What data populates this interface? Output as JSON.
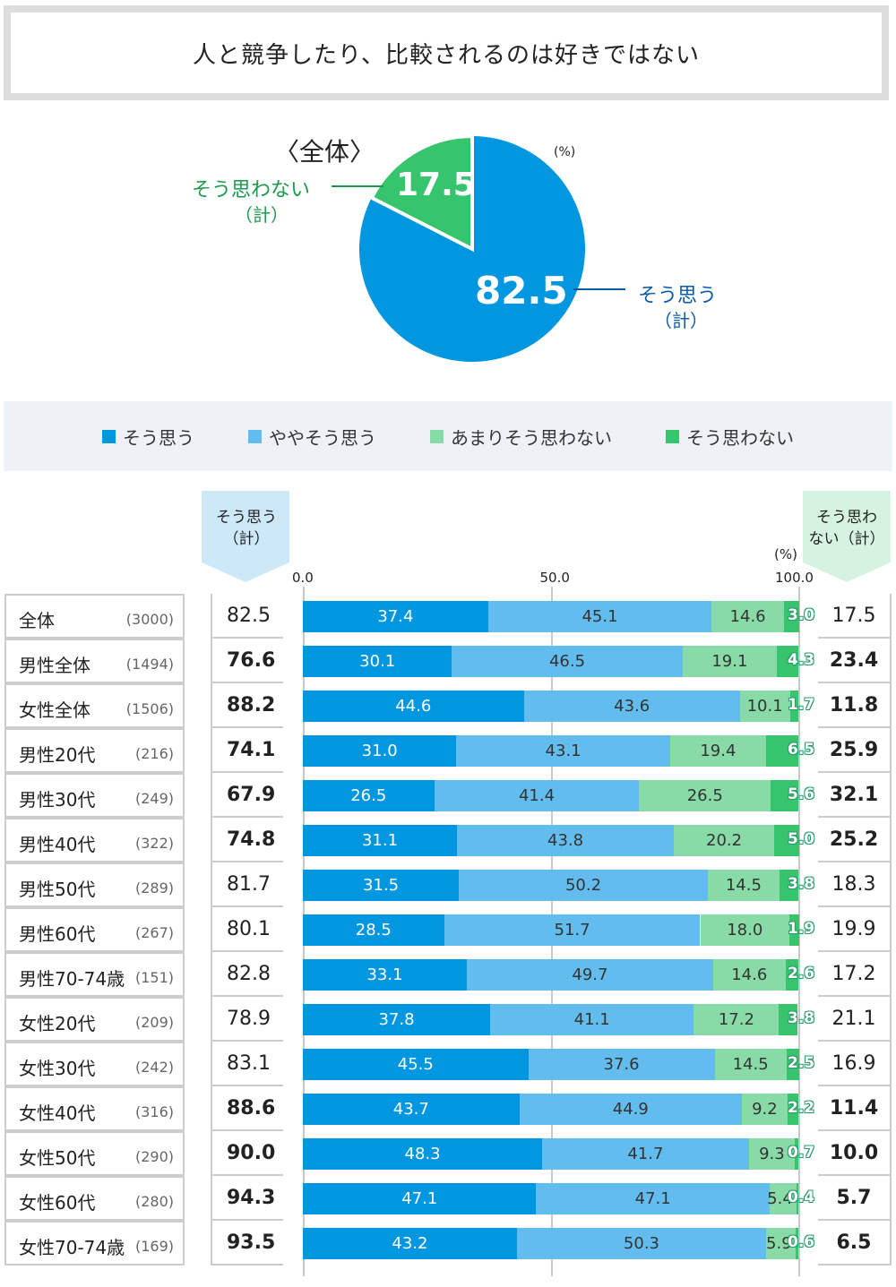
{
  "title": "人と競争したり、比較されるのは好きではない",
  "pie": {
    "heading": "〈全体〉",
    "unit": "(%)",
    "yes_label": "そう思う",
    "yes_sub": "（計）",
    "yes_value": 82.5,
    "no_label": "そう思わない",
    "no_sub": "（計）",
    "no_value": 17.5,
    "yes_color": "#0097e0",
    "no_color": "#36c46c"
  },
  "legend": [
    {
      "label": "そう思う",
      "color": "#0097e0"
    },
    {
      "label": "ややそう思う",
      "color": "#62bdee"
    },
    {
      "label": "あまりそう思わない",
      "color": "#88dba6"
    },
    {
      "label": "そう思わない",
      "color": "#36c46c"
    }
  ],
  "headers": {
    "left": "そう思う\n（計）",
    "right": "そう思わ\nない（計）",
    "unit": "(%)"
  },
  "chart_data": {
    "type": "bar",
    "stacked": true,
    "orientation": "horizontal",
    "xlim": [
      0,
      100
    ],
    "xticks": [
      "0.0",
      "50.0",
      "100.0"
    ],
    "series_names": [
      "そう思う",
      "ややそう思う",
      "あまりそう思わない",
      "そう思わない"
    ],
    "rows": [
      {
        "label": "全体",
        "n": "(3000)",
        "values": [
          37.4,
          45.1,
          14.6,
          3.0
        ],
        "yes": "82.5",
        "no": "17.5",
        "bold": false
      },
      {
        "label": "男性全体",
        "n": "(1494)",
        "values": [
          30.1,
          46.5,
          19.1,
          4.3
        ],
        "yes": "76.6",
        "no": "23.4",
        "bold": true
      },
      {
        "label": "女性全体",
        "n": "(1506)",
        "values": [
          44.6,
          43.6,
          10.1,
          1.7
        ],
        "yes": "88.2",
        "no": "11.8",
        "bold": true
      },
      {
        "label": "男性20代",
        "n": "(216)",
        "values": [
          31.0,
          43.1,
          19.4,
          6.5
        ],
        "yes": "74.1",
        "no": "25.9",
        "bold": true
      },
      {
        "label": "男性30代",
        "n": "(249)",
        "values": [
          26.5,
          41.4,
          26.5,
          5.6
        ],
        "yes": "67.9",
        "no": "32.1",
        "bold": true
      },
      {
        "label": "男性40代",
        "n": "(322)",
        "values": [
          31.1,
          43.8,
          20.2,
          5.0
        ],
        "yes": "74.8",
        "no": "25.2",
        "bold": true
      },
      {
        "label": "男性50代",
        "n": "(289)",
        "values": [
          31.5,
          50.2,
          14.5,
          3.8
        ],
        "yes": "81.7",
        "no": "18.3",
        "bold": false
      },
      {
        "label": "男性60代",
        "n": "(267)",
        "values": [
          28.5,
          51.7,
          18.0,
          1.9
        ],
        "yes": "80.1",
        "no": "19.9",
        "bold": false
      },
      {
        "label": "男性70-74歳",
        "n": "(151)",
        "values": [
          33.1,
          49.7,
          14.6,
          2.6
        ],
        "yes": "82.8",
        "no": "17.2",
        "bold": false
      },
      {
        "label": "女性20代",
        "n": "(209)",
        "values": [
          37.8,
          41.1,
          17.2,
          3.8
        ],
        "yes": "78.9",
        "no": "21.1",
        "bold": false
      },
      {
        "label": "女性30代",
        "n": "(242)",
        "values": [
          45.5,
          37.6,
          14.5,
          2.5
        ],
        "yes": "83.1",
        "no": "16.9",
        "bold": false
      },
      {
        "label": "女性40代",
        "n": "(316)",
        "values": [
          43.7,
          44.9,
          9.2,
          2.2
        ],
        "yes": "88.6",
        "no": "11.4",
        "bold": true
      },
      {
        "label": "女性50代",
        "n": "(290)",
        "values": [
          48.3,
          41.7,
          9.3,
          0.7
        ],
        "yes": "90.0",
        "no": "10.0",
        "bold": true
      },
      {
        "label": "女性60代",
        "n": "(280)",
        "values": [
          47.1,
          47.1,
          5.4,
          0.4
        ],
        "yes": "94.3",
        "no": "5.7",
        "bold": true
      },
      {
        "label": "女性70-74歳",
        "n": "(169)",
        "values": [
          43.2,
          50.3,
          5.9,
          0.6
        ],
        "yes": "93.5",
        "no": "6.5",
        "bold": true
      }
    ]
  }
}
